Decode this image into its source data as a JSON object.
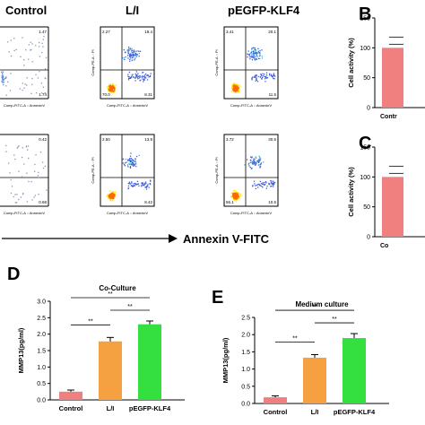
{
  "flow": {
    "columns": [
      "Control",
      "L/I",
      "pEGFP-KLF4"
    ],
    "x_axis_label": "Annexin V-FITC",
    "y_tick_prefix": "Comp-PE-A :: PI",
    "x_tick_label": "Comp-FITC-A :: AnnexinV",
    "row1": [
      {
        "ul": "",
        "ur": "1.47",
        "ll": "",
        "lr": "1.74"
      },
      {
        "ul": "2.27",
        "ur": "19.4",
        "ll": "70.0",
        "lr": "8.31"
      },
      {
        "ul": "3.41",
        "ur": "20.1",
        "ll": "",
        "lr": "11.5"
      }
    ],
    "row2": [
      {
        "ul": "",
        "ur": "0.42",
        "ll": "",
        "lr": "0.68"
      },
      {
        "ul": "2.50",
        "ur": "13.9",
        "ll": "",
        "lr": "8.42"
      },
      {
        "ul": "3.72",
        "ur": "30.5",
        "ll": "56.1",
        "lr": "10.5"
      }
    ]
  },
  "chart_data": [
    {
      "panel": "B",
      "type": "bar",
      "ylabel": "Cell activity (%)",
      "yticks": [
        "0",
        "50",
        "100",
        "150"
      ],
      "ylim": [
        0,
        150
      ],
      "categories": [
        "Control"
      ],
      "values": [
        100
      ],
      "category_label": "Contr"
    },
    {
      "panel": "C",
      "type": "bar",
      "ylabel": "Cell activity (%)",
      "yticks": [
        "0",
        "50",
        "100",
        "150"
      ],
      "ylim": [
        0,
        150
      ],
      "categories": [
        "Co"
      ],
      "values": [
        100
      ],
      "category_label": "Co"
    },
    {
      "panel": "D",
      "type": "bar",
      "title": "Co-Culture",
      "ylabel": "MMP13(pg/ml)",
      "yticks": [
        "0.0",
        "0.5",
        "1.0",
        "1.5",
        "2.0",
        "2.5",
        "3.0"
      ],
      "ylim": [
        0,
        3.0
      ],
      "categories": [
        "Control",
        "L/I",
        "pEGFP-KLF4"
      ],
      "values": [
        0.25,
        1.78,
        2.3
      ],
      "errors": [
        0.05,
        0.12,
        0.1
      ],
      "colors": [
        "#f08080",
        "#f5a142",
        "#33e03f"
      ],
      "significance": [
        "**",
        "**",
        "**"
      ]
    },
    {
      "panel": "E",
      "type": "bar",
      "title": "Medium culture",
      "ylabel": "MMP13(pg/ml)",
      "yticks": [
        "0.0",
        "0.5",
        "1.0",
        "1.5",
        "2.0",
        "2.5"
      ],
      "ylim": [
        0,
        2.5
      ],
      "categories": [
        "Control",
        "L/I",
        "pEGFP-KLF4"
      ],
      "values": [
        0.18,
        1.33,
        1.9
      ],
      "errors": [
        0.04,
        0.09,
        0.13
      ],
      "colors": [
        "#f08080",
        "#f5a142",
        "#33e03f"
      ],
      "significance": [
        "**",
        "**",
        "**"
      ]
    }
  ],
  "panel_letters": {
    "b": "B",
    "c": "C",
    "d": "D",
    "e": "E"
  }
}
